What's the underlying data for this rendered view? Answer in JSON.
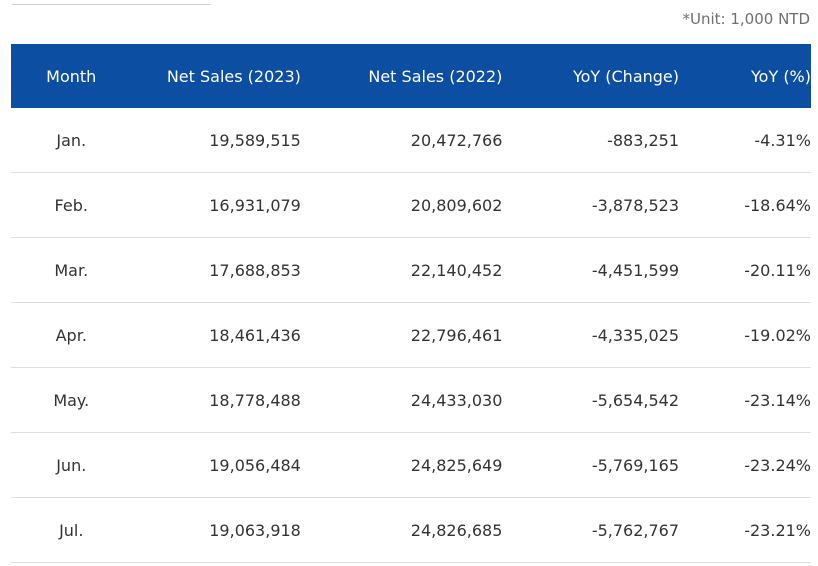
{
  "unit_note": "*Unit: 1,000 NTD",
  "table": {
    "headers": {
      "month": "Month",
      "net_sales_2023": "Net Sales (2023)",
      "net_sales_2022": "Net Sales (2022)",
      "yoy_change": "YoY (Change)",
      "yoy_pct": "YoY (%)"
    },
    "rows": [
      {
        "month": "Jan.",
        "net_sales_2023": "19,589,515",
        "net_sales_2022": "20,472,766",
        "yoy_change": "-883,251",
        "yoy_pct": "-4.31%"
      },
      {
        "month": "Feb.",
        "net_sales_2023": "16,931,079",
        "net_sales_2022": "20,809,602",
        "yoy_change": "-3,878,523",
        "yoy_pct": "-18.64%"
      },
      {
        "month": "Mar.",
        "net_sales_2023": "17,688,853",
        "net_sales_2022": "22,140,452",
        "yoy_change": "-4,451,599",
        "yoy_pct": "-20.11%"
      },
      {
        "month": "Apr.",
        "net_sales_2023": "18,461,436",
        "net_sales_2022": "22,796,461",
        "yoy_change": "-4,335,025",
        "yoy_pct": "-19.02%"
      },
      {
        "month": "May.",
        "net_sales_2023": "18,778,488",
        "net_sales_2022": "24,433,030",
        "yoy_change": "-5,654,542",
        "yoy_pct": "-23.14%"
      },
      {
        "month": "Jun.",
        "net_sales_2023": "19,056,484",
        "net_sales_2022": "24,825,649",
        "yoy_change": "-5,769,165",
        "yoy_pct": "-23.24%"
      },
      {
        "month": "Jul.",
        "net_sales_2023": "19,063,918",
        "net_sales_2022": "24,826,685",
        "yoy_change": "-5,762,767",
        "yoy_pct": "-23.21%"
      }
    ]
  },
  "colors": {
    "header_background": "#0b4ea2",
    "header_text": "#ffffff",
    "row_divider": "#dddddd",
    "body_text": "#333333"
  }
}
